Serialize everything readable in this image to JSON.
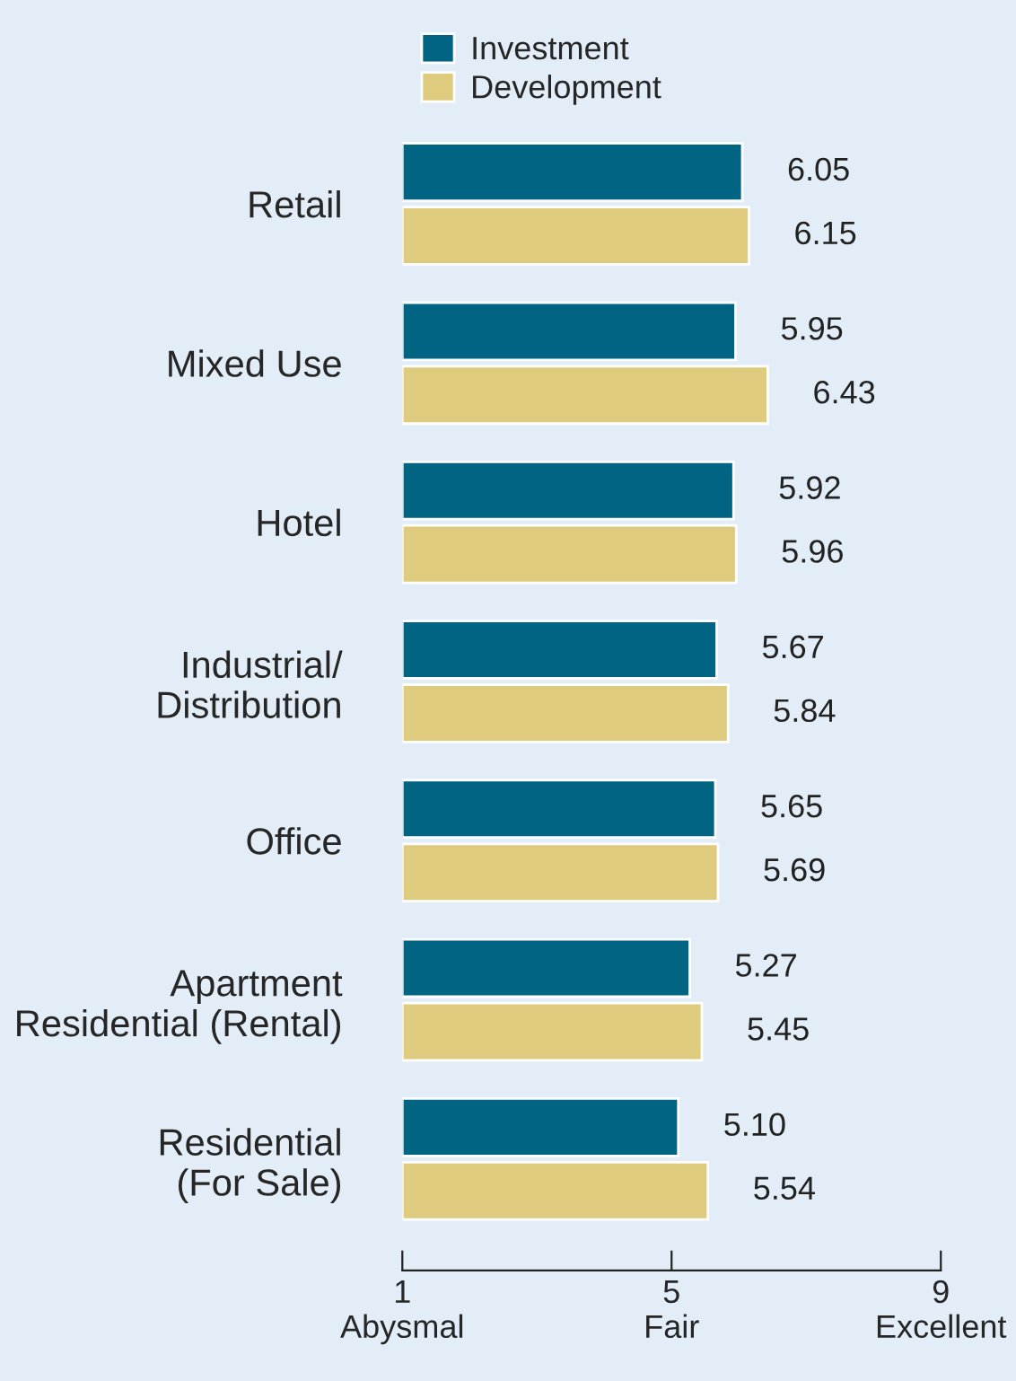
{
  "chart_data": {
    "type": "bar",
    "orientation": "horizontal",
    "categories": [
      "Retail",
      "Mixed Use",
      "Hotel",
      "Industrial/\nDistribution",
      "Office",
      "Apartment\nResidential (Rental)",
      "Residential\n(For Sale)"
    ],
    "series": [
      {
        "name": "Investment",
        "color": "#006482",
        "values": [
          6.05,
          5.95,
          5.92,
          5.67,
          5.65,
          5.27,
          5.1
        ],
        "value_labels": [
          "6.05",
          "5.95",
          "5.92",
          "5.67",
          "5.65",
          "5.27",
          "5.10"
        ]
      },
      {
        "name": "Development",
        "color": "#dfcb7d",
        "values": [
          6.15,
          6.43,
          5.96,
          5.84,
          5.69,
          5.45,
          5.54
        ],
        "value_labels": [
          "6.15",
          "6.43",
          "5.96",
          "5.84",
          "5.69",
          "5.45",
          "5.54"
        ]
      }
    ],
    "xlim": [
      1,
      9
    ],
    "xticks": [
      {
        "value": 1,
        "label": "1\nAbysmal"
      },
      {
        "value": 5,
        "label": "5\nFair"
      },
      {
        "value": 9,
        "label": "9\nExcellent"
      }
    ],
    "grid": false,
    "legend": "top left"
  }
}
